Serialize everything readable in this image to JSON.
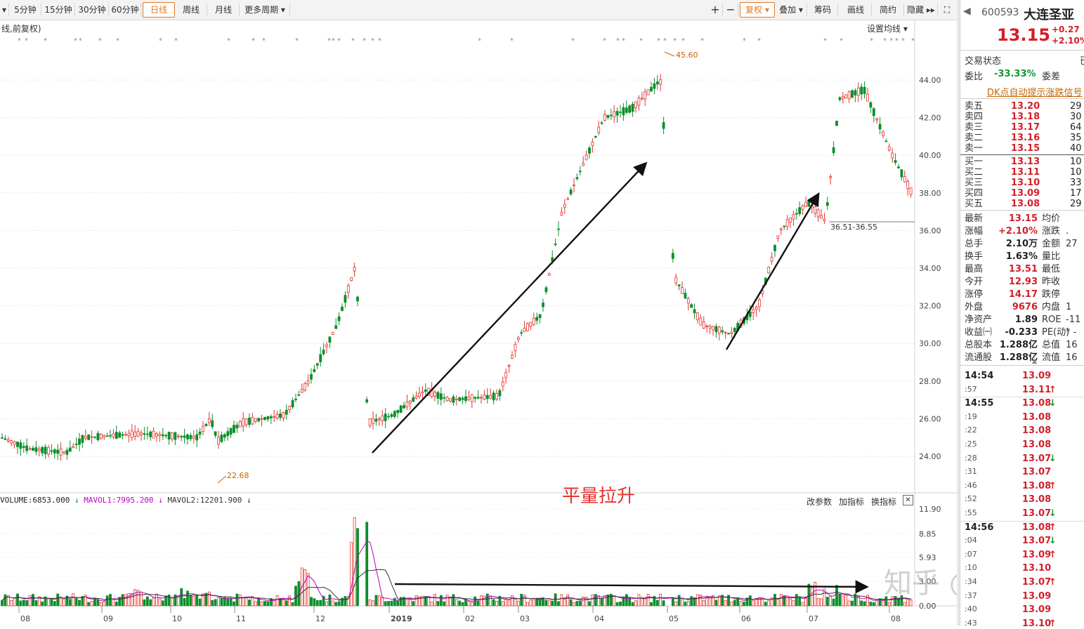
{
  "toolbar": {
    "items": [
      "5分钟",
      "15分钟",
      "30分钟",
      "60分钟",
      "日线",
      "周线",
      "月线",
      "更多周期 ▾"
    ],
    "active": "日线",
    "right_items": [
      "复权 ▾",
      "叠加 ▾",
      "筹码",
      "画线",
      "简约",
      "隐藏 ▸▸"
    ]
  },
  "chart": {
    "title_label": "线,前复权)",
    "ma_setting": "设置均线 ▾",
    "price_axis": [
      "44.00",
      "42.00",
      "40.00",
      "38.00",
      "36.00",
      "34.00",
      "32.00",
      "30.00",
      "28.00",
      "26.00",
      "24.00"
    ],
    "high_marker": "45.60",
    "low_marker": "22.68",
    "range_label": "36.51-36.55",
    "annotation_text": "平量拉升",
    "volume_header": {
      "volume": "VOLUME:6853.000",
      "mavol1": "MAVOL1:7995.200",
      "mavol2": "MAVOL2:12201.900"
    },
    "volume_buttons": [
      "改参数",
      "加指标",
      "换指标"
    ],
    "volume_axis": [
      "11.90",
      "8.85",
      "5.93",
      "3.00",
      "0.00"
    ],
    "time_axis": [
      "08",
      "09",
      "10",
      "11",
      "12",
      "2019",
      "02",
      "03",
      "04",
      "05",
      "06",
      "07",
      "08"
    ],
    "watermark": "知乎 @白帆",
    "colors": {
      "up": "#e3342f",
      "down": "#0b8f2a",
      "accent": "#e07b28",
      "mavol1": "#c000c0",
      "mavol2": "#333333"
    }
  },
  "quote": {
    "code": "600593",
    "name": "大连圣亚",
    "price": "13.15",
    "change": "+0.27",
    "change_pct": "+2.10%",
    "trade_status_label": "交易状态",
    "trade_status_value": "已",
    "weibi_label": "委比",
    "weibi_value": "-33.33%",
    "weicha_label": "委差",
    "dk_link": "DK点自动提示涨跌信号",
    "sells": [
      {
        "label": "卖五",
        "price": "13.20",
        "vol": "29"
      },
      {
        "label": "卖四",
        "price": "13.18",
        "vol": "30"
      },
      {
        "label": "卖三",
        "price": "13.17",
        "vol": "64"
      },
      {
        "label": "卖二",
        "price": "13.16",
        "vol": "35"
      },
      {
        "label": "卖一",
        "price": "13.15",
        "vol": "40"
      }
    ],
    "buys": [
      {
        "label": "买一",
        "price": "13.13",
        "vol": "10"
      },
      {
        "label": "买二",
        "price": "13.11",
        "vol": "10"
      },
      {
        "label": "买三",
        "price": "13.10",
        "vol": "33"
      },
      {
        "label": "买四",
        "price": "13.09",
        "vol": "17"
      },
      {
        "label": "买五",
        "price": "13.08",
        "vol": "29"
      }
    ],
    "stats": [
      {
        "l1": "最新",
        "v1": "13.15",
        "c1": "red",
        "l2": "均价",
        "v2": ""
      },
      {
        "l1": "涨幅",
        "v1": "+2.10%",
        "c1": "red",
        "l2": "涨跌",
        "v2": "."
      },
      {
        "l1": "总手",
        "v1": "2.10万",
        "c1": "dark",
        "l2": "金额",
        "v2": "27"
      },
      {
        "l1": "换手",
        "v1": "1.63%",
        "c1": "dark",
        "l2": "量比",
        "v2": ""
      },
      {
        "l1": "最高",
        "v1": "13.51",
        "c1": "red",
        "l2": "最低",
        "v2": ""
      },
      {
        "l1": "今开",
        "v1": "12.93",
        "c1": "red",
        "l2": "昨收",
        "v2": ""
      },
      {
        "l1": "涨停",
        "v1": "14.17",
        "c1": "red",
        "l2": "跌停",
        "v2": ""
      },
      {
        "l1": "外盘",
        "v1": "9676",
        "c1": "red",
        "l2": "内盘",
        "v2": "1"
      },
      {
        "l1": "净资产",
        "v1": "1.89",
        "c1": "dark",
        "l2": "ROE",
        "v2": "-11"
      },
      {
        "l1": "收益㈠",
        "v1": "-0.233",
        "c1": "dark",
        "l2": "PE(动)",
        "v2": "* -"
      },
      {
        "l1": "总股本",
        "v1": "1.288亿",
        "c1": "dark",
        "l2": "总值",
        "v2": "16"
      },
      {
        "l1": "流通股",
        "v1": "1.288亿",
        "c1": "dark",
        "l2": "流值",
        "v2": "16"
      }
    ],
    "ticks": [
      {
        "time": "14:54",
        "price": "13.09",
        "dir": "",
        "big": true
      },
      {
        "time": ":57",
        "price": "13.11",
        "dir": "up",
        "big": false
      },
      {
        "time": "14:55",
        "price": "13.08",
        "dir": "down",
        "big": true
      },
      {
        "time": ":19",
        "price": "13.08",
        "dir": "",
        "big": false
      },
      {
        "time": ":22",
        "price": "13.08",
        "dir": "",
        "big": false
      },
      {
        "time": ":25",
        "price": "13.08",
        "dir": "",
        "big": false
      },
      {
        "time": ":28",
        "price": "13.07",
        "dir": "down",
        "big": false
      },
      {
        "time": ":31",
        "price": "13.07",
        "dir": "",
        "big": false
      },
      {
        "time": ":46",
        "price": "13.08",
        "dir": "up",
        "big": false
      },
      {
        "time": ":52",
        "price": "13.08",
        "dir": "",
        "big": false
      },
      {
        "time": ":55",
        "price": "13.07",
        "dir": "down",
        "big": false
      },
      {
        "time": "14:56",
        "price": "13.08",
        "dir": "up",
        "big": true
      },
      {
        "time": ":04",
        "price": "13.07",
        "dir": "down",
        "big": false
      },
      {
        "time": ":07",
        "price": "13.09",
        "dir": "up",
        "big": false
      },
      {
        "time": ":10",
        "price": "13.10",
        "dir": "",
        "big": false
      },
      {
        "time": ":34",
        "price": "13.07",
        "dir": "up",
        "big": false
      },
      {
        "time": ":37",
        "price": "13.09",
        "dir": "",
        "big": false
      },
      {
        "time": ":40",
        "price": "13.09",
        "dir": "",
        "big": false
      },
      {
        "time": ":43",
        "price": "13.10",
        "dir": "up",
        "big": false
      }
    ]
  }
}
